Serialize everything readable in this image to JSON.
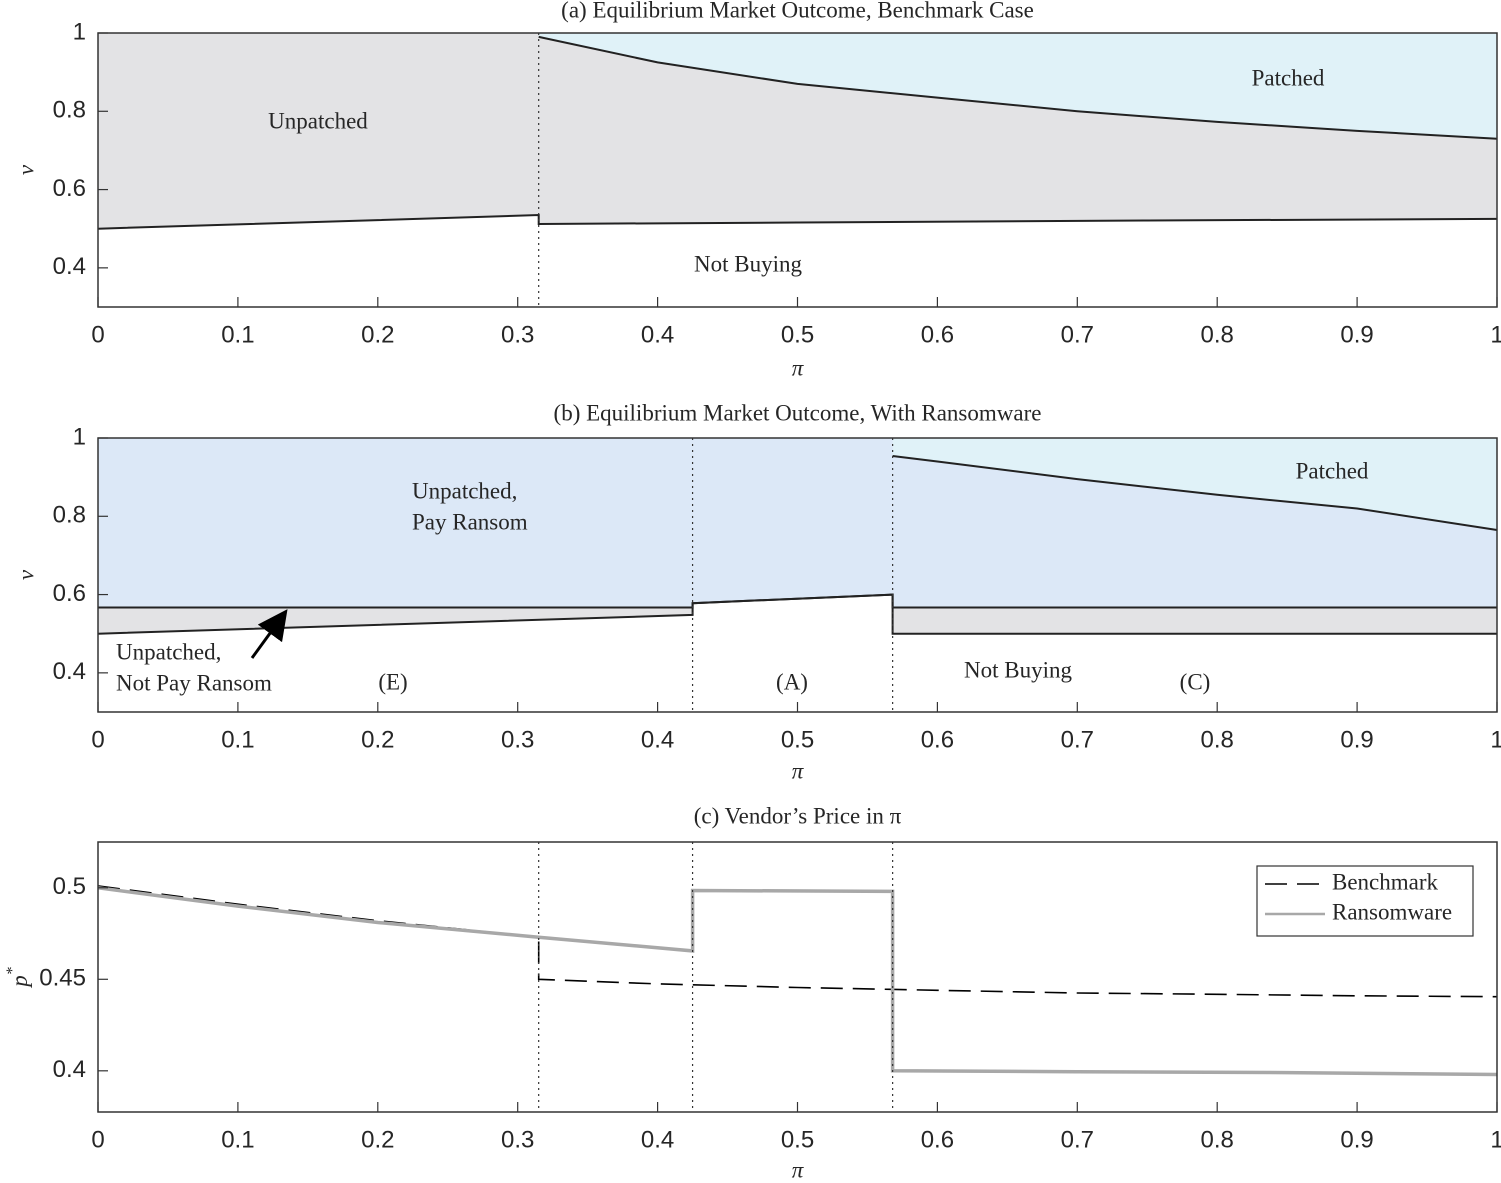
{
  "chart_data": [
    {
      "type": "region",
      "title": "(a) Equilibrium Market Outcome, Benchmark Case",
      "xlabel": "π",
      "ylabel": "v",
      "xlim": [
        0,
        1
      ],
      "ylim": [
        0.3,
        1
      ],
      "xticks": [
        0,
        0.1,
        0.2,
        0.3,
        0.4,
        0.5,
        0.6,
        0.7,
        0.8,
        0.9,
        1
      ],
      "yticks": [
        0.4,
        0.6,
        0.8,
        1
      ],
      "vlines": [
        0.315
      ],
      "boundaries": [
        {
          "fill": "#e3e3e5",
          "x": [
            0,
            0.1,
            0.2,
            0.315,
            0.315,
            0.5,
            0.75,
            1
          ],
          "values": [
            0.5,
            0.511,
            0.522,
            0.535,
            0.512,
            0.516,
            0.521,
            0.525
          ]
        },
        {
          "fill": "#e0f2f8",
          "x": [
            0.315,
            0.4,
            0.5,
            0.6,
            0.7,
            0.8,
            0.9,
            1
          ],
          "values": [
            0.99,
            0.925,
            0.87,
            0.835,
            0.8,
            0.773,
            0.75,
            0.73
          ]
        }
      ],
      "annotations": [
        [
          "Unpatched"
        ],
        [
          "Patched"
        ],
        [
          "Not Buying"
        ]
      ]
    },
    {
      "type": "region",
      "title": "(b) Equilibrium Market Outcome, With Ransomware",
      "xlabel": "π",
      "ylabel": "v",
      "xlim": [
        0,
        1
      ],
      "ylim": [
        0.3,
        1
      ],
      "xticks": [
        0,
        0.1,
        0.2,
        0.3,
        0.4,
        0.5,
        0.6,
        0.7,
        0.8,
        0.9,
        1
      ],
      "yticks": [
        0.4,
        0.6,
        0.8,
        1
      ],
      "vlines": [
        0.425,
        0.568
      ],
      "boundaries": [
        {
          "fill": "#e3e3e5",
          "x": [
            0,
            0.425,
            0.425,
            0.568,
            0.568,
            1
          ],
          "values": [
            0.5,
            0.548,
            0.578,
            0.6,
            0.5,
            0.5
          ]
        },
        {
          "fill": "#dce8f7",
          "x": [
            0,
            0.425,
            0.425,
            0.568,
            0.568,
            1
          ],
          "values": [
            0.567,
            0.567,
            0.578,
            0.6,
            0.567,
            0.567
          ]
        },
        {
          "fill": "#e0f2f8",
          "x": [
            0.568,
            0.6,
            0.7,
            0.8,
            0.9,
            1
          ],
          "values": [
            0.954,
            0.94,
            0.895,
            0.855,
            0.82,
            0.765
          ]
        }
      ],
      "annotations": [
        [
          "Unpatched,",
          "Pay Ransom"
        ],
        [
          "Patched"
        ],
        [
          "Unpatched,",
          "Not Pay Ransom"
        ],
        [
          "(E)"
        ],
        [
          "(A)"
        ],
        [
          "Not Buying"
        ],
        [
          "(C)"
        ]
      ]
    },
    {
      "type": "line",
      "title": "(c) Vendor’s Price in π",
      "xlabel": "π",
      "ylabel": {
        "base": "p",
        "sup": "*"
      },
      "xlim": [
        0,
        1
      ],
      "ylim": [
        0.3775,
        0.525
      ],
      "xticks": [
        0,
        0.1,
        0.2,
        0.3,
        0.4,
        0.5,
        0.6,
        0.7,
        0.8,
        0.9,
        1
      ],
      "yticks": [
        0.4,
        0.45,
        0.5
      ],
      "vlines": [
        0.315,
        0.425,
        0.568
      ],
      "legend": "northeast",
      "series": [
        {
          "name": "Benchmark",
          "color": "#000000",
          "linestyle": "dashed",
          "x": [
            0,
            0.1,
            0.2,
            0.315,
            0.315,
            0.4,
            0.5,
            0.6,
            0.7,
            0.8,
            0.9,
            1
          ],
          "values": [
            0.501,
            0.491,
            0.482,
            0.473,
            0.45,
            0.4475,
            0.4455,
            0.444,
            0.4425,
            0.4418,
            0.441,
            0.4405
          ]
        },
        {
          "name": "Ransomware",
          "color": "#a8a8a8",
          "linestyle": "solid",
          "x": [
            0,
            0.1,
            0.2,
            0.315,
            0.425,
            0.425,
            0.568,
            0.568,
            0.7,
            0.85,
            1
          ],
          "values": [
            0.5,
            0.49,
            0.481,
            0.473,
            0.4655,
            0.4985,
            0.498,
            0.4,
            0.3995,
            0.399,
            0.398
          ]
        }
      ]
    }
  ]
}
